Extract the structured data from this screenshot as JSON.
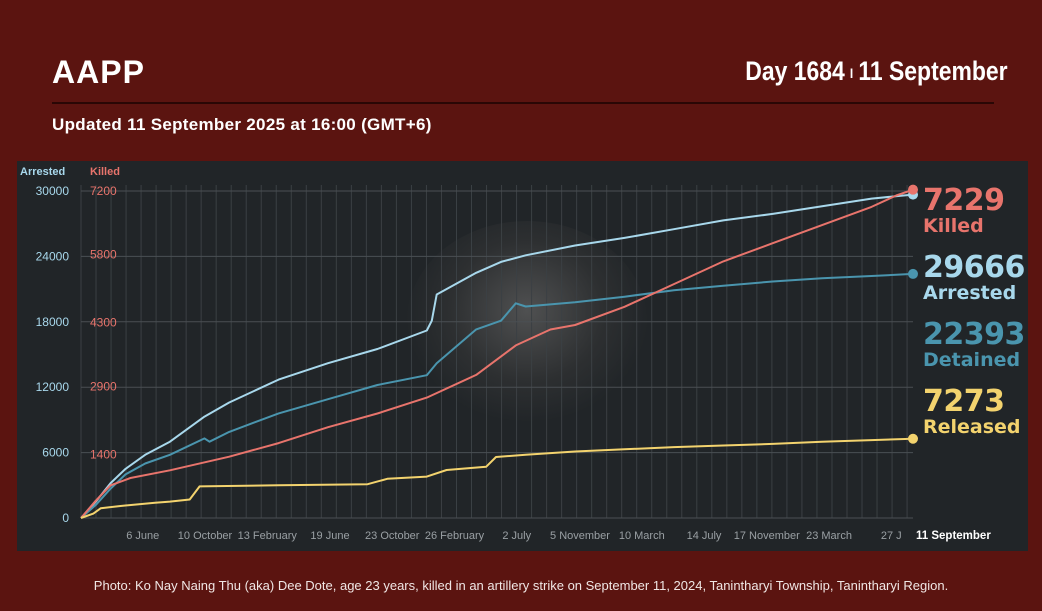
{
  "header": {
    "brand": "AAPP",
    "day": "Day 1684",
    "separator": "I",
    "date": "11 September",
    "updated": "Updated 11 September 2025 at 16:00 (GMT+6)"
  },
  "colors": {
    "background": "#5b1410",
    "panel": "#212528",
    "arrested": "#a8d8ec",
    "detained": "#4a95ae",
    "killed": "#e8746c",
    "released": "#f3d36e"
  },
  "chart_data": {
    "type": "line",
    "left_axis_title": "Arrested",
    "right_axis_title": "Killed",
    "left_ticks": [
      0,
      6000,
      12000,
      18000,
      24000,
      30000
    ],
    "right_ticks": [
      1400,
      2900,
      4300,
      5800,
      7200
    ],
    "left_ylim": [
      0,
      30000
    ],
    "right_ylim": [
      0,
      7200
    ],
    "x_ticks": [
      "6 June",
      "10 October",
      "13 February",
      "19 June",
      "23 October",
      "26 February",
      "2 July",
      "5 November",
      "10 March",
      "14 July",
      "17 November",
      "23 March",
      "27 J",
      "11 September"
    ],
    "x_tick_days": [
      125,
      251,
      377,
      504,
      630,
      756,
      882,
      1010,
      1135,
      1261,
      1388,
      1514,
      1640,
      1684
    ],
    "grid": true,
    "series": [
      {
        "name": "Arrested",
        "axis": "left",
        "color": "#a8d8ec",
        "final": "29666",
        "x": [
          0,
          30,
          60,
          90,
          130,
          180,
          250,
          300,
          400,
          500,
          600,
          700,
          710,
          720,
          800,
          850,
          900,
          1000,
          1100,
          1200,
          1300,
          1400,
          1500,
          1600,
          1684
        ],
        "y": [
          0,
          1500,
          3200,
          4500,
          5800,
          7000,
          9300,
          10600,
          12700,
          14200,
          15500,
          17200,
          18100,
          20500,
          22500,
          23500,
          24100,
          25000,
          25700,
          26500,
          27300,
          27900,
          28600,
          29300,
          29666
        ]
      },
      {
        "name": "Detained",
        "axis": "left",
        "color": "#4a95ae",
        "final": "22393",
        "x": [
          0,
          30,
          60,
          90,
          130,
          180,
          250,
          260,
          300,
          400,
          500,
          600,
          700,
          720,
          800,
          850,
          880,
          900,
          1000,
          1100,
          1200,
          1300,
          1400,
          1500,
          1600,
          1684
        ],
        "y": [
          0,
          1200,
          2700,
          4000,
          5000,
          5800,
          7300,
          7000,
          7900,
          9600,
          10900,
          12200,
          13100,
          14200,
          17300,
          18100,
          19700,
          19400,
          19800,
          20300,
          20900,
          21300,
          21700,
          22000,
          22200,
          22393
        ]
      },
      {
        "name": "Killed",
        "axis": "right",
        "color": "#e8746c",
        "final": "7229",
        "x": [
          0,
          30,
          60,
          100,
          180,
          300,
          400,
          500,
          600,
          700,
          800,
          880,
          950,
          1000,
          1100,
          1200,
          1300,
          1400,
          1500,
          1600,
          1650,
          1684
        ],
        "y": [
          0,
          380,
          720,
          880,
          1050,
          1350,
          1650,
          2000,
          2300,
          2650,
          3150,
          3800,
          4150,
          4250,
          4650,
          5150,
          5650,
          6050,
          6450,
          6850,
          7100,
          7229
        ]
      },
      {
        "name": "Released",
        "axis": "left",
        "color": "#f3d36e",
        "final": "7273",
        "x": [
          0,
          25,
          40,
          80,
          150,
          180,
          220,
          240,
          400,
          580,
          620,
          700,
          740,
          820,
          840,
          900,
          1000,
          1100,
          1200,
          1300,
          1400,
          1500,
          1600,
          1684
        ],
        "y": [
          0,
          400,
          900,
          1100,
          1400,
          1500,
          1700,
          2900,
          3000,
          3100,
          3600,
          3800,
          4400,
          4700,
          5600,
          5800,
          6100,
          6300,
          6500,
          6650,
          6800,
          7000,
          7150,
          7273
        ]
      }
    ]
  },
  "stats": [
    {
      "value": "7229",
      "label": "Killed",
      "color": "#e8746c"
    },
    {
      "value": "29666",
      "label": "Arrested",
      "color": "#a8d8ec"
    },
    {
      "value": "22393",
      "label": "Detained",
      "color": "#4a95ae"
    },
    {
      "value": "7273",
      "label": "Released",
      "color": "#f3d36e"
    }
  ],
  "caption": "Photo: Ko Nay Naing Thu (aka) Dee Dote, age 23 years, killed in an artillery strike on September 11, 2024, Tanintharyi Township, Tanintharyi Region."
}
